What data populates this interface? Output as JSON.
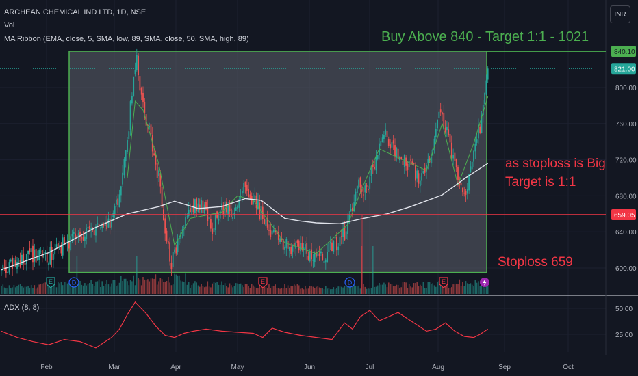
{
  "header": {
    "symbol_line": "ARCHEAN CHEMICAL IND LTD, 1D, NSE",
    "vol_label": "Vol",
    "ribbon_label": "MA Ribbon (EMA, close, 5, SMA, low, 89, SMA, close, 50, SMA, high, 89)",
    "currency_button": "INR"
  },
  "colors": {
    "background": "#131722",
    "up_candle": "#26a69a",
    "down_candle": "#ef5350",
    "box_fill": "#5d606b",
    "box_border": "#4caf50",
    "stop_line": "#f23645",
    "ema_line": "#4caf50",
    "sma_line": "#e0e3eb",
    "adx_line": "#f23645",
    "annotation_green": "#4caf50",
    "annotation_red": "#f23645"
  },
  "annotations": {
    "buy_text": "Buy Above 840 - Target 1:1 - 1021",
    "note_line1": "as stoploss is Big",
    "note_line2": "Target is 1:1",
    "stoploss_text": "Stoploss 659"
  },
  "price_tags": {
    "box_top": "840.10",
    "last_price": "821.00",
    "stop_level": "659.05"
  },
  "events": [
    "E",
    "D",
    "E",
    "D",
    "E",
    "lightning"
  ],
  "chart_data": [
    {
      "type": "candlestick",
      "x_labels": [
        "Feb",
        "Mar",
        "Apr",
        "May",
        "Jun",
        "Jul",
        "Aug",
        "Sep",
        "Oct"
      ],
      "y_ticks": [
        600,
        640,
        680,
        720,
        760,
        800
      ],
      "y_tick_labels": [
        "600.00",
        "640.00",
        "680.00",
        "720.00",
        "760.00",
        "800.00"
      ],
      "ylim": [
        585,
        855
      ],
      "levels": {
        "box_top": 840.1,
        "box_bottom": 595,
        "last_price": 821.0,
        "stoploss": 659.05
      },
      "close_path": [
        [
          0,
          595
        ],
        [
          10,
          605
        ],
        [
          20,
          615
        ],
        [
          28,
          610
        ],
        [
          36,
          622
        ],
        [
          44,
          630
        ],
        [
          52,
          636
        ],
        [
          60,
          640
        ],
        [
          66,
          646
        ],
        [
          72,
          660
        ],
        [
          77,
          700
        ],
        [
          81,
          760
        ],
        [
          84,
          810
        ],
        [
          86,
          835
        ],
        [
          88,
          800
        ],
        [
          91,
          770
        ],
        [
          94,
          750
        ],
        [
          97,
          720
        ],
        [
          100,
          700
        ],
        [
          103,
          660
        ],
        [
          106,
          620
        ],
        [
          108,
          605
        ],
        [
          111,
          618
        ],
        [
          115,
          640
        ],
        [
          120,
          665
        ],
        [
          125,
          672
        ],
        [
          130,
          660
        ],
        [
          134,
          645
        ],
        [
          138,
          660
        ],
        [
          142,
          665
        ],
        [
          146,
          660
        ],
        [
          150,
          672
        ],
        [
          153,
          688
        ],
        [
          157,
          680
        ],
        [
          161,
          672
        ],
        [
          165,
          660
        ],
        [
          170,
          645
        ],
        [
          175,
          630
        ],
        [
          180,
          624
        ],
        [
          186,
          622
        ],
        [
          192,
          618
        ],
        [
          198,
          615
        ],
        [
          203,
          612
        ],
        [
          207,
          617
        ],
        [
          211,
          625
        ],
        [
          215,
          630
        ],
        [
          219,
          640
        ],
        [
          222,
          665
        ],
        [
          225,
          688
        ],
        [
          228,
          690
        ],
        [
          231,
          688
        ],
        [
          234,
          698
        ],
        [
          237,
          718
        ],
        [
          240,
          738
        ],
        [
          244,
          745
        ],
        [
          248,
          732
        ],
        [
          252,
          722
        ],
        [
          256,
          718
        ],
        [
          260,
          712
        ],
        [
          264,
          702
        ],
        [
          267,
          697
        ],
        [
          271,
          712
        ],
        [
          275,
          750
        ],
        [
          279,
          772
        ],
        [
          283,
          755
        ],
        [
          287,
          720
        ],
        [
          290,
          695
        ],
        [
          293,
          682
        ],
        [
          296,
          688
        ],
        [
          299,
          712
        ],
        [
          302,
          745
        ],
        [
          305,
          765
        ],
        [
          308,
          805
        ],
        [
          309,
          821
        ]
      ],
      "series": [
        {
          "name": "Vol",
          "type": "bar",
          "values_relative": [
            0.2,
            0.3,
            0.35,
            0.45,
            0.5,
            0.3,
            0.25,
            0.2,
            0.15,
            0.2,
            0.25,
            0.3,
            0.35,
            0.3
          ]
        },
        {
          "name": "MA Ribbon EMA 5",
          "type": "line",
          "x": [
            80,
            85,
            90,
            100,
            110,
            120,
            140,
            150,
            160,
            180,
            200,
            220,
            230,
            240,
            255,
            270,
            280,
            290,
            300,
            309
          ],
          "y": [
            700,
            785,
            775,
            715,
            625,
            655,
            662,
            680,
            675,
            628,
            616,
            648,
            692,
            732,
            720,
            708,
            760,
            692,
            738,
            790
          ]
        },
        {
          "name": "MA Ribbon SMA 50",
          "type": "line",
          "x": [
            0,
            30,
            60,
            80,
            100,
            110,
            125,
            140,
            155,
            165,
            180,
            190,
            200,
            215,
            230,
            245,
            260,
            280,
            295,
            309
          ],
          "y": [
            598,
            617,
            645,
            660,
            668,
            674,
            666,
            668,
            677,
            675,
            655,
            652,
            650,
            649,
            655,
            660,
            668,
            681,
            700,
            716
          ]
        }
      ]
    },
    {
      "type": "line",
      "title": "ADX (8, 8)",
      "y_ticks": [
        25,
        50
      ],
      "y_tick_labels": [
        "25.00",
        "50.00"
      ],
      "ylim": [
        0,
        60
      ],
      "x": [
        0,
        10,
        20,
        30,
        40,
        50,
        60,
        70,
        75,
        80,
        85,
        92,
        98,
        104,
        110,
        116,
        122,
        130,
        140,
        150,
        160,
        166,
        172,
        180,
        190,
        200,
        210,
        218,
        223,
        228,
        234,
        240,
        246,
        252,
        258,
        264,
        270,
        276,
        282,
        288,
        294,
        300,
        304,
        309
      ],
      "y": [
        28,
        22,
        18,
        15,
        20,
        18,
        12,
        22,
        30,
        44,
        56,
        45,
        33,
        24,
        22,
        26,
        28,
        30,
        28,
        27,
        26,
        22,
        31,
        27,
        24,
        22,
        20,
        36,
        30,
        42,
        48,
        38,
        42,
        46,
        40,
        34,
        28,
        30,
        36,
        28,
        23,
        22,
        25,
        30
      ]
    }
  ]
}
